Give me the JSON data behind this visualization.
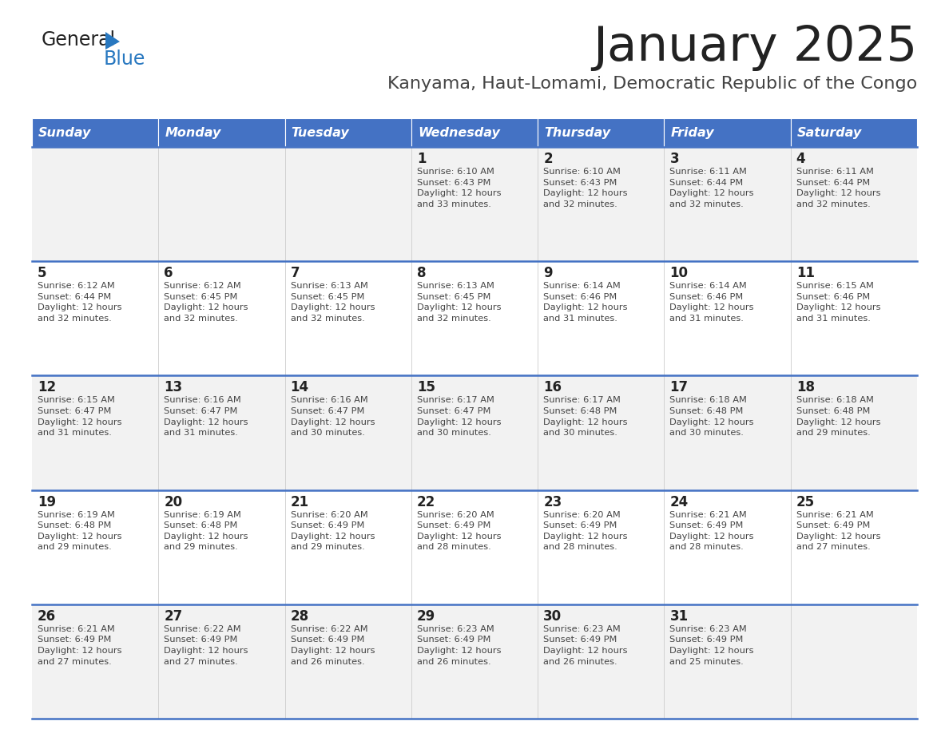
{
  "title": "January 2025",
  "subtitle": "Kanyama, Haut-Lomami, Democratic Republic of the Congo",
  "days_of_week": [
    "Sunday",
    "Monday",
    "Tuesday",
    "Wednesday",
    "Thursday",
    "Friday",
    "Saturday"
  ],
  "header_bg": "#4472C4",
  "header_text": "#FFFFFF",
  "row_bg_odd": "#F2F2F2",
  "row_bg_even": "#FFFFFF",
  "cell_border": "#4472C4",
  "title_color": "#222222",
  "subtitle_color": "#444444",
  "day_number_color": "#222222",
  "cell_text_color": "#444444",
  "calendar_data": [
    [
      null,
      null,
      null,
      {
        "day": 1,
        "sunrise": "6:10 AM",
        "sunset": "6:43 PM",
        "daylight": "12 hours",
        "daylight2": "and 33 minutes."
      },
      {
        "day": 2,
        "sunrise": "6:10 AM",
        "sunset": "6:43 PM",
        "daylight": "12 hours",
        "daylight2": "and 32 minutes."
      },
      {
        "day": 3,
        "sunrise": "6:11 AM",
        "sunset": "6:44 PM",
        "daylight": "12 hours",
        "daylight2": "and 32 minutes."
      },
      {
        "day": 4,
        "sunrise": "6:11 AM",
        "sunset": "6:44 PM",
        "daylight": "12 hours",
        "daylight2": "and 32 minutes."
      }
    ],
    [
      {
        "day": 5,
        "sunrise": "6:12 AM",
        "sunset": "6:44 PM",
        "daylight": "12 hours",
        "daylight2": "and 32 minutes."
      },
      {
        "day": 6,
        "sunrise": "6:12 AM",
        "sunset": "6:45 PM",
        "daylight": "12 hours",
        "daylight2": "and 32 minutes."
      },
      {
        "day": 7,
        "sunrise": "6:13 AM",
        "sunset": "6:45 PM",
        "daylight": "12 hours",
        "daylight2": "and 32 minutes."
      },
      {
        "day": 8,
        "sunrise": "6:13 AM",
        "sunset": "6:45 PM",
        "daylight": "12 hours",
        "daylight2": "and 32 minutes."
      },
      {
        "day": 9,
        "sunrise": "6:14 AM",
        "sunset": "6:46 PM",
        "daylight": "12 hours",
        "daylight2": "and 31 minutes."
      },
      {
        "day": 10,
        "sunrise": "6:14 AM",
        "sunset": "6:46 PM",
        "daylight": "12 hours",
        "daylight2": "and 31 minutes."
      },
      {
        "day": 11,
        "sunrise": "6:15 AM",
        "sunset": "6:46 PM",
        "daylight": "12 hours",
        "daylight2": "and 31 minutes."
      }
    ],
    [
      {
        "day": 12,
        "sunrise": "6:15 AM",
        "sunset": "6:47 PM",
        "daylight": "12 hours",
        "daylight2": "and 31 minutes."
      },
      {
        "day": 13,
        "sunrise": "6:16 AM",
        "sunset": "6:47 PM",
        "daylight": "12 hours",
        "daylight2": "and 31 minutes."
      },
      {
        "day": 14,
        "sunrise": "6:16 AM",
        "sunset": "6:47 PM",
        "daylight": "12 hours",
        "daylight2": "and 30 minutes."
      },
      {
        "day": 15,
        "sunrise": "6:17 AM",
        "sunset": "6:47 PM",
        "daylight": "12 hours",
        "daylight2": "and 30 minutes."
      },
      {
        "day": 16,
        "sunrise": "6:17 AM",
        "sunset": "6:48 PM",
        "daylight": "12 hours",
        "daylight2": "and 30 minutes."
      },
      {
        "day": 17,
        "sunrise": "6:18 AM",
        "sunset": "6:48 PM",
        "daylight": "12 hours",
        "daylight2": "and 30 minutes."
      },
      {
        "day": 18,
        "sunrise": "6:18 AM",
        "sunset": "6:48 PM",
        "daylight": "12 hours",
        "daylight2": "and 29 minutes."
      }
    ],
    [
      {
        "day": 19,
        "sunrise": "6:19 AM",
        "sunset": "6:48 PM",
        "daylight": "12 hours",
        "daylight2": "and 29 minutes."
      },
      {
        "day": 20,
        "sunrise": "6:19 AM",
        "sunset": "6:48 PM",
        "daylight": "12 hours",
        "daylight2": "and 29 minutes."
      },
      {
        "day": 21,
        "sunrise": "6:20 AM",
        "sunset": "6:49 PM",
        "daylight": "12 hours",
        "daylight2": "and 29 minutes."
      },
      {
        "day": 22,
        "sunrise": "6:20 AM",
        "sunset": "6:49 PM",
        "daylight": "12 hours",
        "daylight2": "and 28 minutes."
      },
      {
        "day": 23,
        "sunrise": "6:20 AM",
        "sunset": "6:49 PM",
        "daylight": "12 hours",
        "daylight2": "and 28 minutes."
      },
      {
        "day": 24,
        "sunrise": "6:21 AM",
        "sunset": "6:49 PM",
        "daylight": "12 hours",
        "daylight2": "and 28 minutes."
      },
      {
        "day": 25,
        "sunrise": "6:21 AM",
        "sunset": "6:49 PM",
        "daylight": "12 hours",
        "daylight2": "and 27 minutes."
      }
    ],
    [
      {
        "day": 26,
        "sunrise": "6:21 AM",
        "sunset": "6:49 PM",
        "daylight": "12 hours",
        "daylight2": "and 27 minutes."
      },
      {
        "day": 27,
        "sunrise": "6:22 AM",
        "sunset": "6:49 PM",
        "daylight": "12 hours",
        "daylight2": "and 27 minutes."
      },
      {
        "day": 28,
        "sunrise": "6:22 AM",
        "sunset": "6:49 PM",
        "daylight": "12 hours",
        "daylight2": "and 26 minutes."
      },
      {
        "day": 29,
        "sunrise": "6:23 AM",
        "sunset": "6:49 PM",
        "daylight": "12 hours",
        "daylight2": "and 26 minutes."
      },
      {
        "day": 30,
        "sunrise": "6:23 AM",
        "sunset": "6:49 PM",
        "daylight": "12 hours",
        "daylight2": "and 26 minutes."
      },
      {
        "day": 31,
        "sunrise": "6:23 AM",
        "sunset": "6:49 PM",
        "daylight": "12 hours",
        "daylight2": "and 25 minutes."
      },
      null
    ]
  ],
  "logo_general_color": "#222222",
  "logo_blue_color": "#2878C0"
}
